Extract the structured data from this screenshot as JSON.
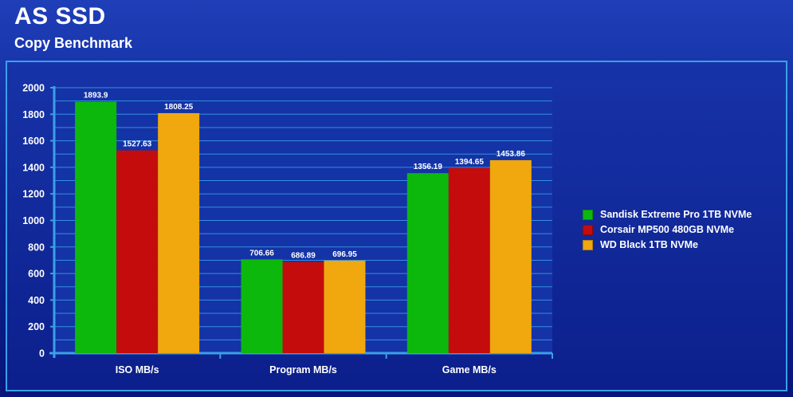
{
  "header": {
    "title": "AS SSD",
    "subtitle": "Copy Benchmark"
  },
  "colors": {
    "background": "#0d2596",
    "grid": "#3aa0e8",
    "text": "#ffffff"
  },
  "chart_data": {
    "type": "bar",
    "title": "AS SSD",
    "subtitle": "Copy Benchmark",
    "xlabel": "",
    "ylabel": "",
    "ylim": [
      0,
      2000
    ],
    "yticks": [
      0,
      200,
      400,
      600,
      800,
      1000,
      1200,
      1400,
      1600,
      1800,
      2000
    ],
    "grid": true,
    "legend_position": "right",
    "categories": [
      "ISO MB/s",
      "Program MB/s",
      "Game MB/s"
    ],
    "series": [
      {
        "name": "Sandisk Extreme Pro 1TB NVMe",
        "color": "#0db80d",
        "values": [
          1893.9,
          706.66,
          1356.19
        ],
        "labels": [
          "1893.9",
          "706.66",
          "1356.19"
        ]
      },
      {
        "name": "Corsair MP500 480GB NVMe",
        "color": "#c40c0c",
        "values": [
          1527.63,
          686.89,
          1394.65
        ],
        "labels": [
          "1527.63",
          "686.89",
          "1394.65"
        ]
      },
      {
        "name": "WD Black 1TB NVMe",
        "color": "#f0a80e",
        "values": [
          1808.25,
          696.95,
          1453.86
        ],
        "labels": [
          "1808.25",
          "696.95",
          "1453.86"
        ]
      }
    ]
  }
}
